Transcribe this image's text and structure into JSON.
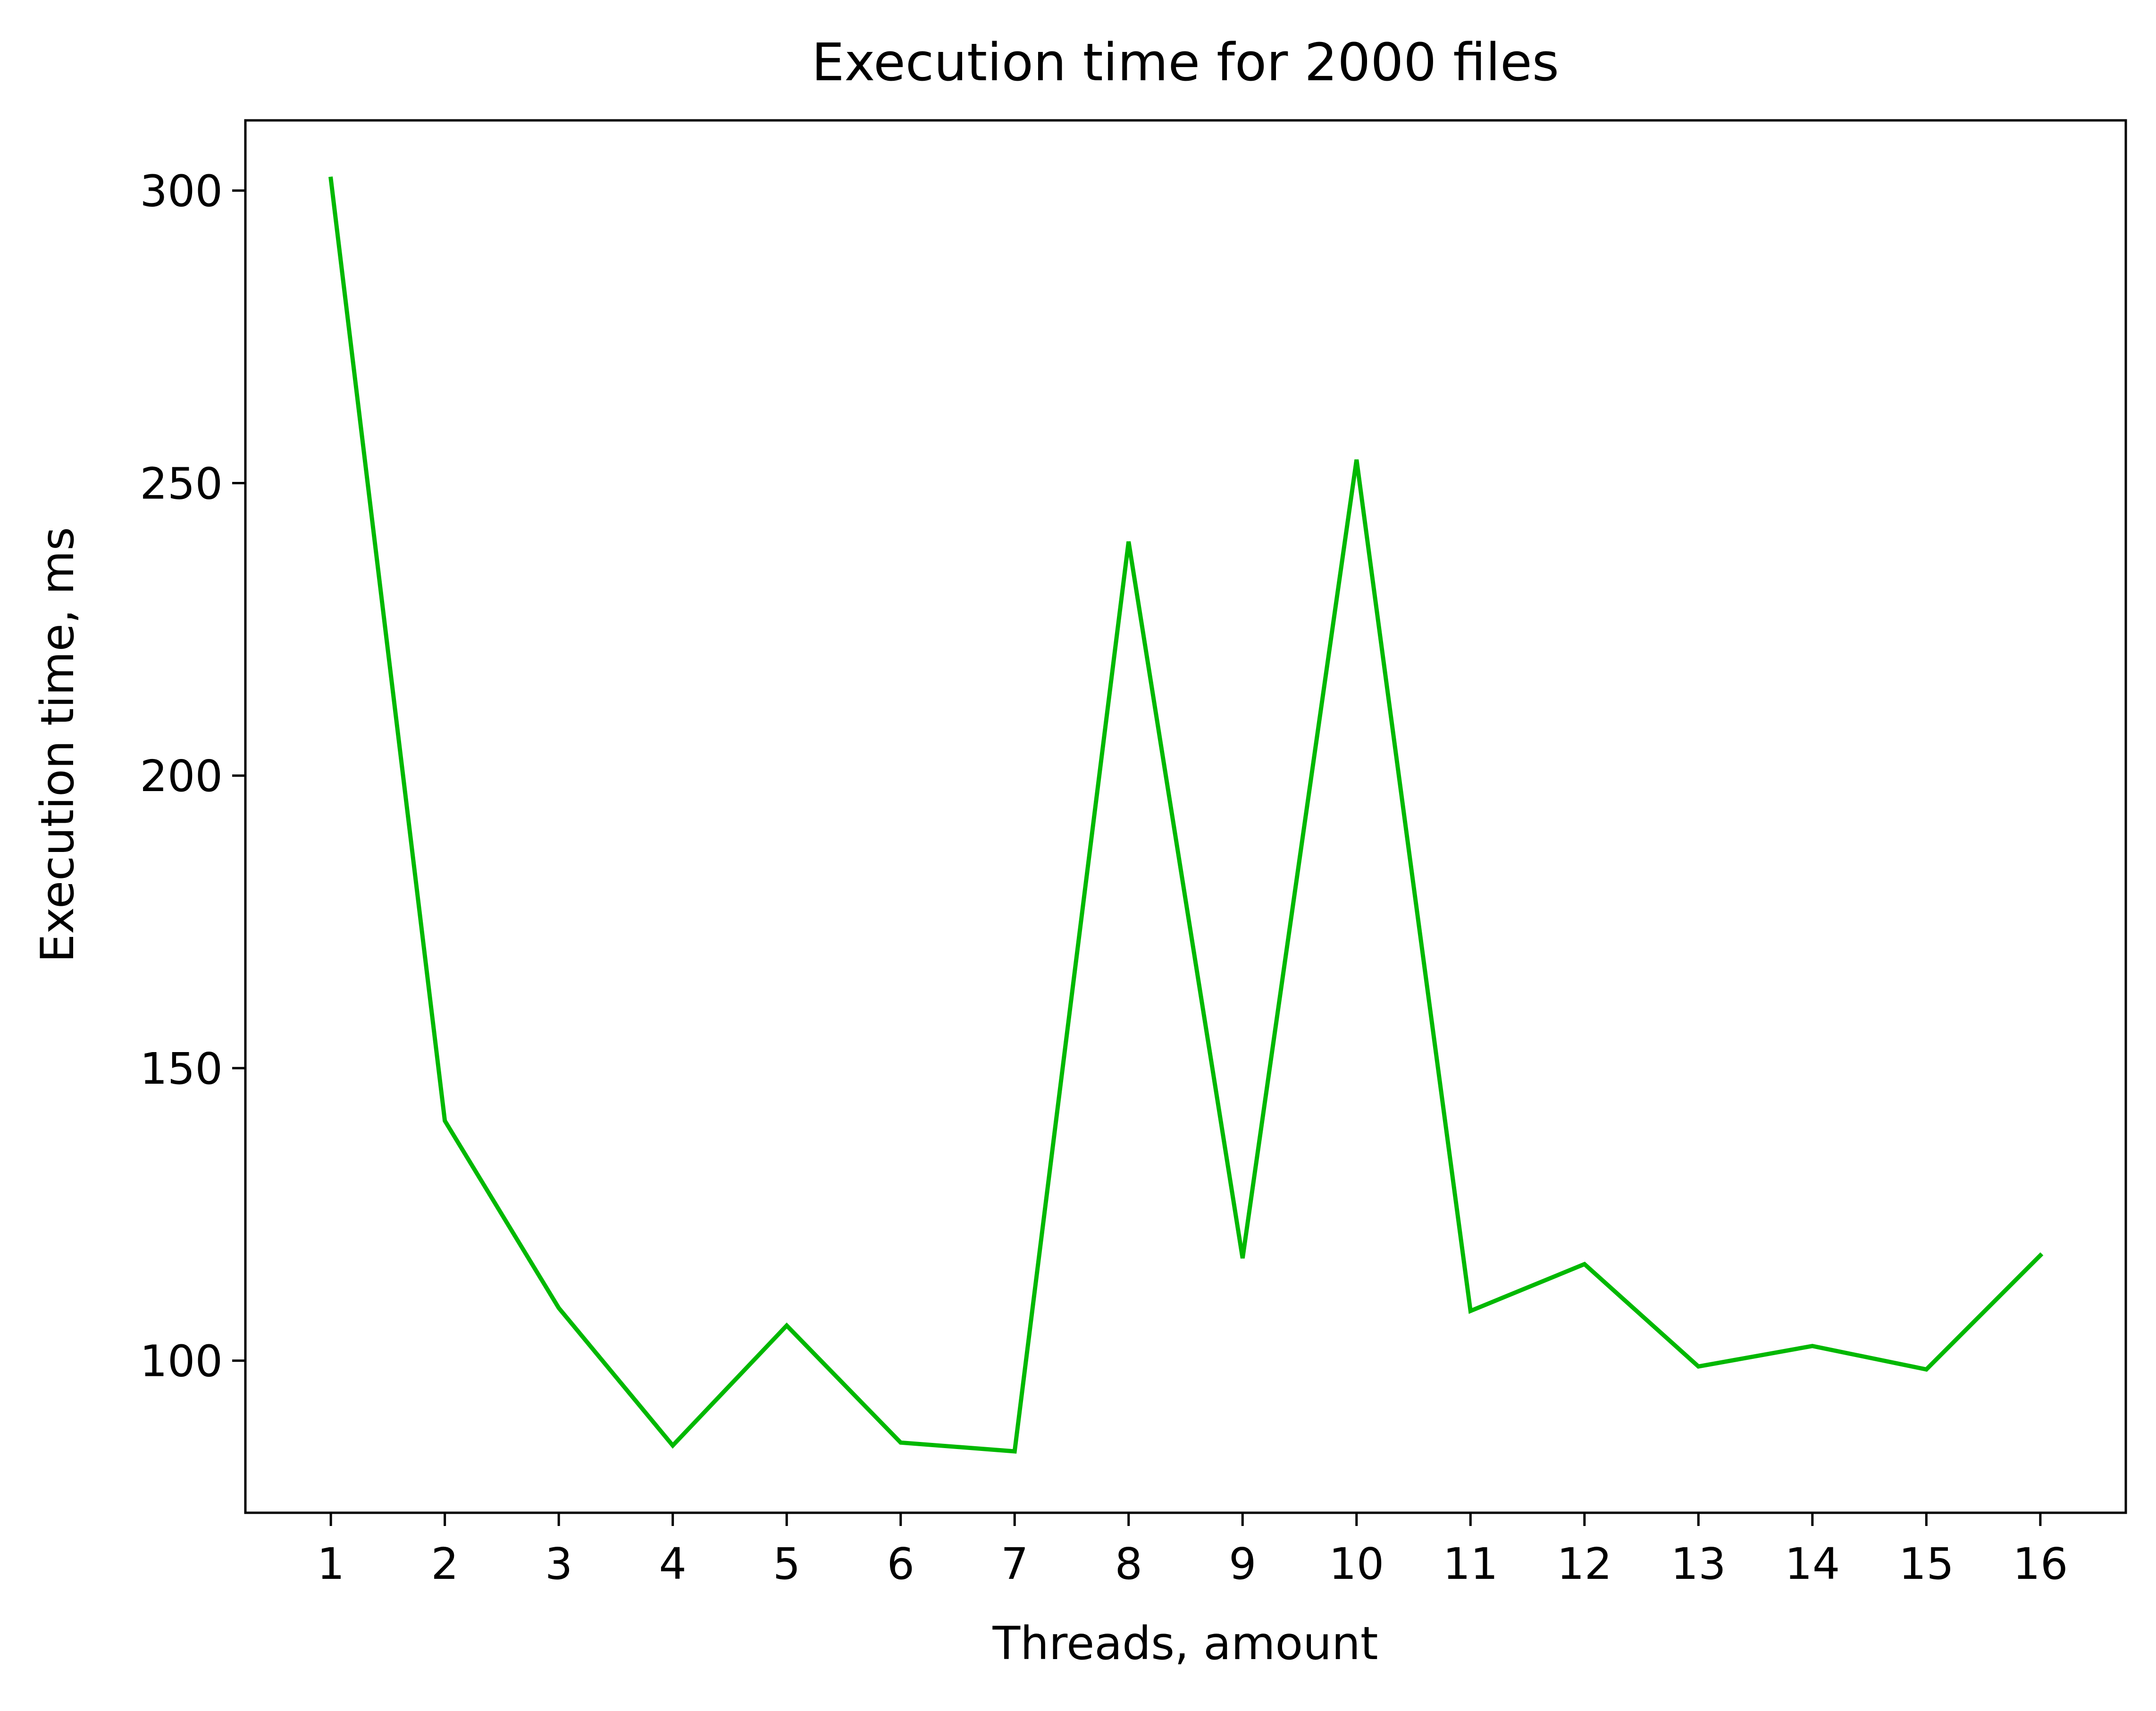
{
  "chart_data": {
    "type": "line",
    "title": "Execution time for 2000 files",
    "xlabel": "Threads, amount",
    "ylabel": "Execution time, ms",
    "x": [
      1,
      2,
      3,
      4,
      5,
      6,
      7,
      8,
      9,
      10,
      11,
      12,
      13,
      14,
      15,
      16
    ],
    "x_ticks": [
      "1",
      "2",
      "3",
      "4",
      "5",
      "6",
      "7",
      "8",
      "9",
      "10",
      "11",
      "12",
      "13",
      "14",
      "15",
      "16"
    ],
    "y_ticks": [
      "100",
      "150",
      "200",
      "250",
      "300"
    ],
    "xlim": [
      0.25,
      16.75
    ],
    "ylim": [
      74,
      312
    ],
    "grid": false,
    "series": [
      {
        "color": "#00b800",
        "values": [
          302,
          141,
          109,
          85.5,
          106,
          86,
          84.5,
          240,
          117.5,
          254,
          108.5,
          116.5,
          99,
          102.5,
          98.5,
          118
        ]
      }
    ]
  }
}
